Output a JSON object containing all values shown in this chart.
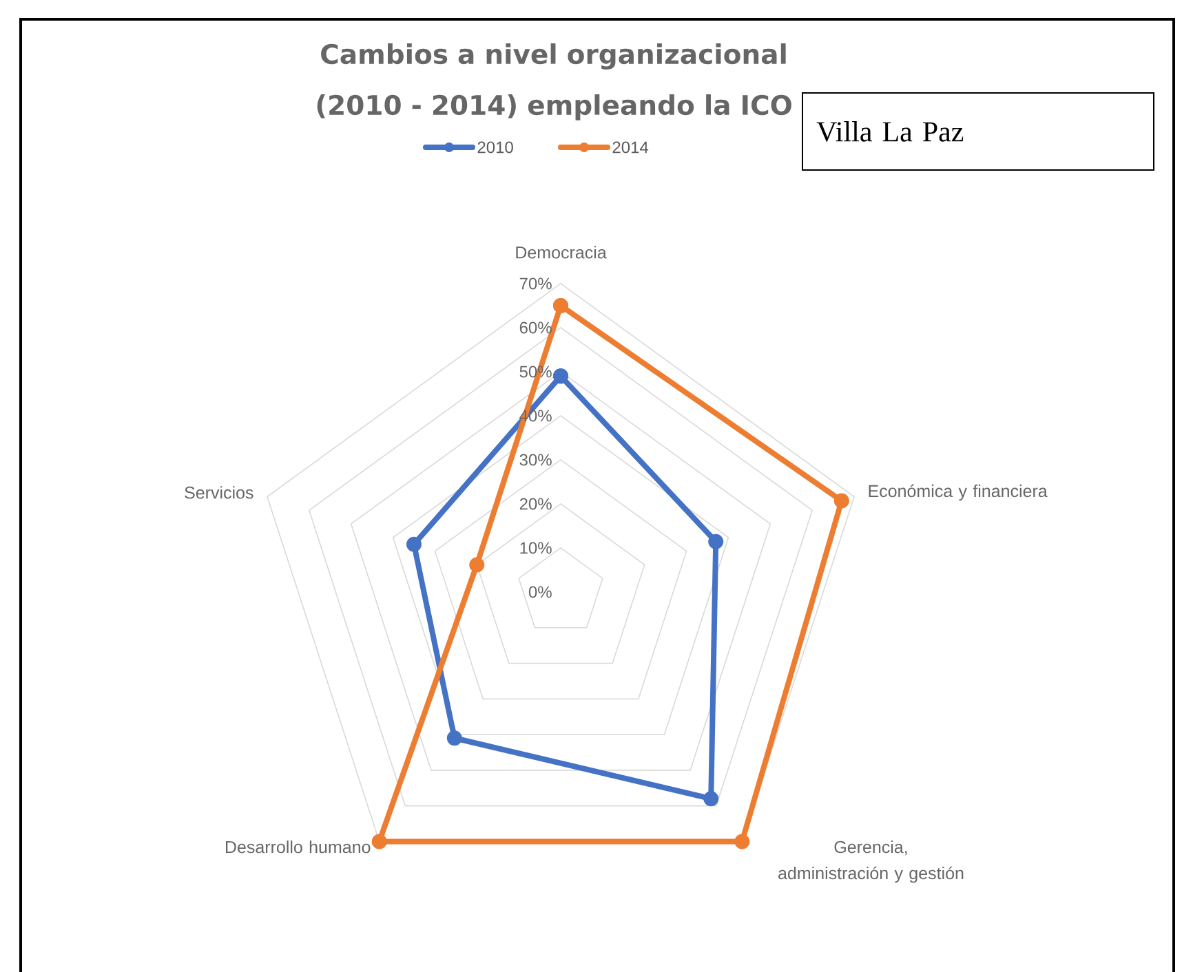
{
  "chart_data": {
    "type": "radar",
    "title": "Cambios a nivel organizacional (2010 - 2014) empleando la ICO",
    "categories": [
      "Democracia",
      "Económica y financiera",
      "Gerencia, administración y gestión",
      "Desarrollo humano",
      "Servicios"
    ],
    "series": [
      {
        "name": "2010",
        "color": "#4472c4",
        "values": [
          49,
          37,
          58,
          41,
          35
        ]
      },
      {
        "name": "2014",
        "color": "#ed7d31",
        "values": [
          65,
          67,
          70,
          70,
          20
        ]
      }
    ],
    "ylim": [
      0,
      70
    ],
    "yticks": [
      {
        "value": 0,
        "label": "0%"
      },
      {
        "value": 10,
        "label": "10%"
      },
      {
        "value": 20,
        "label": "20%"
      },
      {
        "value": 30,
        "label": "30%"
      },
      {
        "value": 40,
        "label": "40%"
      },
      {
        "value": 50,
        "label": "50%"
      },
      {
        "value": 60,
        "label": "60%"
      },
      {
        "value": 70,
        "label": "70%"
      }
    ],
    "grid": true,
    "legend": "top",
    "marker": "circle",
    "annotations": [
      "Villa La Paz"
    ]
  }
}
